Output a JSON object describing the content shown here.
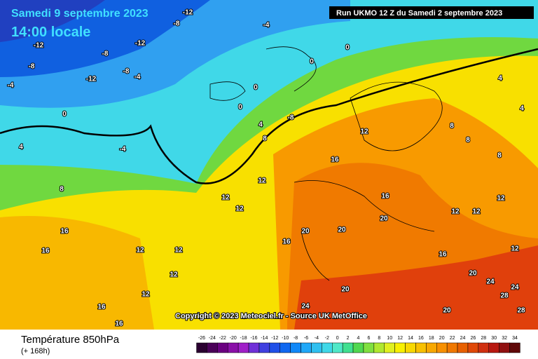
{
  "header": {
    "date": "Samedi 9 septembre 2023",
    "time": "14:00 locale",
    "run": "Run UKMO 12 Z du Samedi 2 septembre 2023"
  },
  "copyright": "Copyright © 2023 Meteociel.fr - Source UK MetOffice",
  "footer": {
    "title": "Température 850hPa",
    "lead": "(+ 168h)"
  },
  "map_labels": [
    "-12",
    "-8",
    "-4",
    "-12",
    "-8",
    "-12",
    "-8",
    "-12",
    "-8",
    "-4",
    "-4",
    "0",
    "0",
    "0",
    "0",
    "0",
    "-4",
    "4",
    "4",
    "8",
    "-8",
    "12",
    "8",
    "8",
    "4",
    "4",
    "8",
    "12",
    "12",
    "12",
    "16",
    "16",
    "16",
    "20",
    "20",
    "20",
    "16",
    "16",
    "12",
    "12",
    "12",
    "12",
    "16",
    "16",
    "20",
    "24",
    "20",
    "24",
    "24",
    "28",
    "28",
    "12",
    "12",
    "12",
    "12",
    "16",
    "20",
    "8"
  ],
  "legend": {
    "ticks": [
      -26,
      -24,
      -22,
      -20,
      -18,
      -16,
      -14,
      -12,
      -10,
      -8,
      -6,
      -4,
      -2,
      0,
      2,
      4,
      6,
      8,
      10,
      12,
      14,
      16,
      18,
      20,
      22,
      24,
      26,
      28,
      30,
      32,
      34
    ],
    "colors": [
      "#2a0030",
      "#4a0058",
      "#6a0080",
      "#8a10a8",
      "#a020c8",
      "#7030d8",
      "#4040e0",
      "#2050e8",
      "#1068f0",
      "#1088f8",
      "#20a8f8",
      "#30c0f0",
      "#40d8e8",
      "#50e8c8",
      "#40e090",
      "#50d850",
      "#80e040",
      "#b0e830",
      "#e0f020",
      "#f8f000",
      "#f8d800",
      "#f8c000",
      "#f8a800",
      "#f89000",
      "#f07800",
      "#e86000",
      "#e04808",
      "#d03010",
      "#b81810",
      "#901010",
      "#600808"
    ]
  }
}
